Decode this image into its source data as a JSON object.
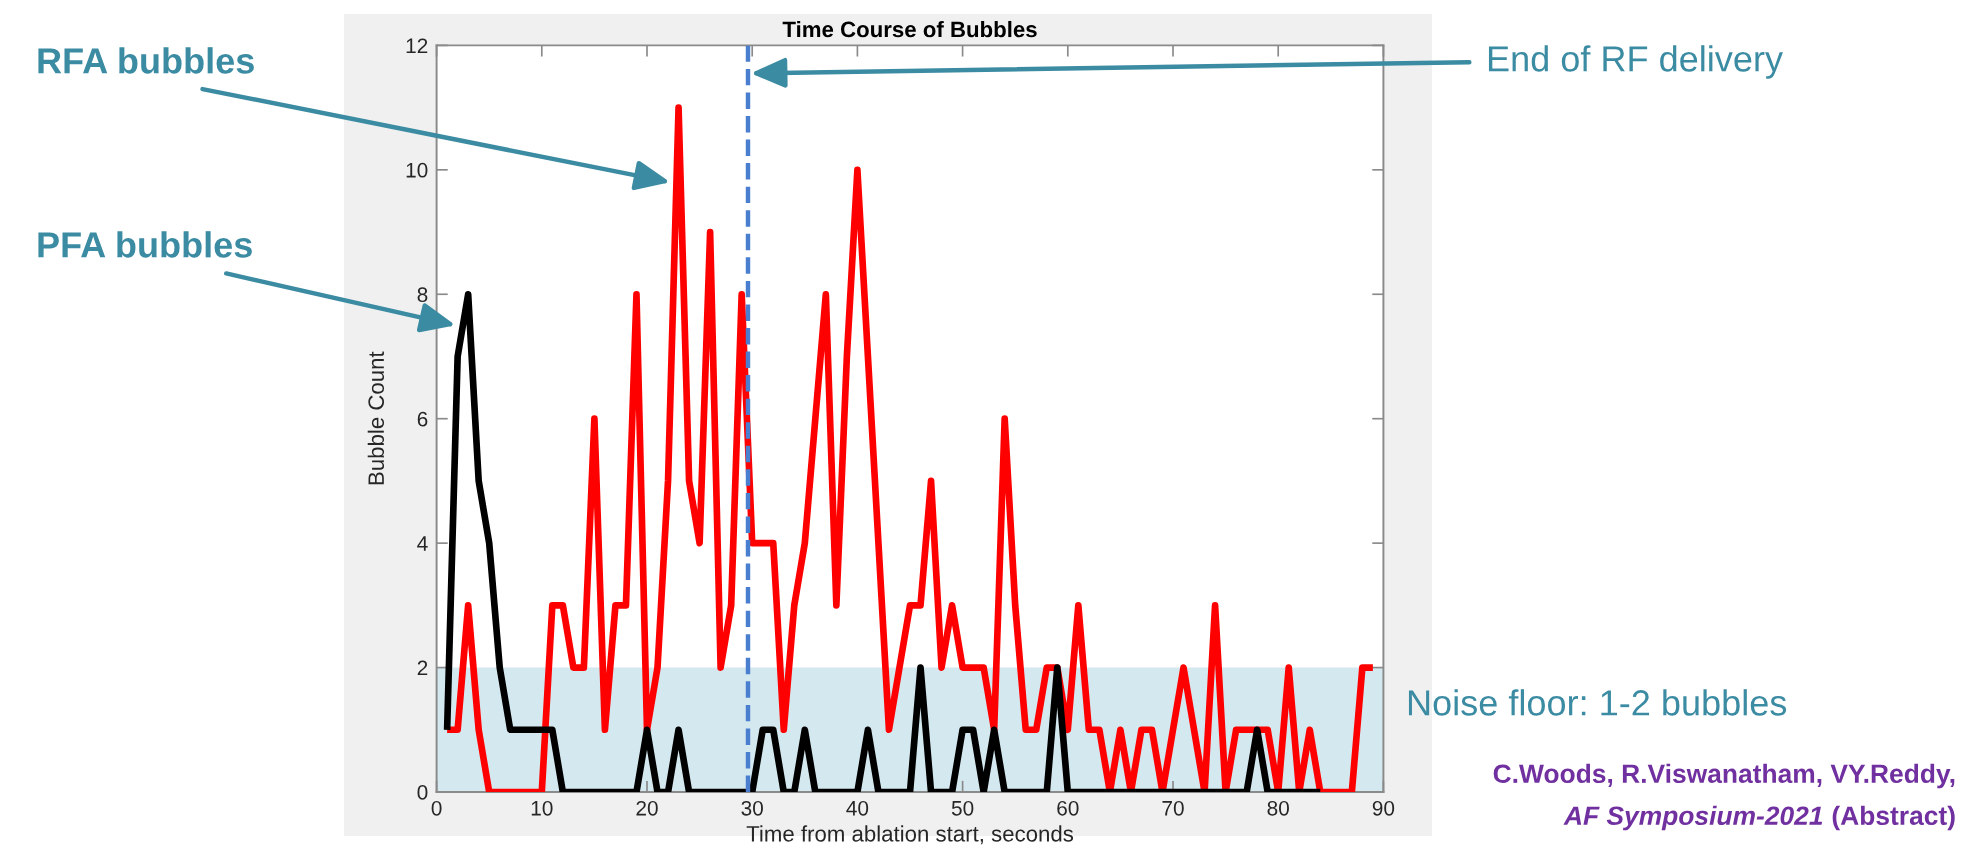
{
  "chart_data": {
    "type": "line",
    "title": "Time Course of Bubbles",
    "xlabel": "Time from ablation start, seconds",
    "ylabel": "Bubble Count",
    "series": [
      {
        "color": "#ff0000",
        "x": [
          1,
          2,
          3,
          4,
          5,
          6,
          7,
          8,
          9,
          10,
          11,
          12,
          13,
          14,
          15,
          16,
          17,
          18,
          19,
          20,
          21,
          22,
          23,
          24,
          25,
          26,
          27,
          28,
          29,
          30,
          31,
          32,
          33,
          34,
          35,
          36,
          37,
          38,
          39,
          40,
          41,
          42,
          43,
          44,
          45,
          46,
          47,
          48,
          49,
          50,
          51,
          52,
          53,
          54,
          55,
          56,
          57,
          58,
          59,
          60,
          61,
          62,
          63,
          64,
          65,
          66,
          67,
          68,
          69,
          70,
          71,
          72,
          73,
          74,
          75,
          76,
          77,
          78,
          79,
          80,
          81,
          82,
          83,
          84,
          85,
          86,
          87,
          88,
          89
        ],
        "values": [
          1,
          1,
          3,
          1,
          0,
          0,
          0,
          0,
          0,
          0,
          3,
          3,
          2,
          2,
          6,
          1,
          3,
          3,
          8,
          1,
          2,
          5,
          11,
          5,
          4,
          9,
          2,
          3,
          8,
          4,
          4,
          4,
          1,
          3,
          4,
          6,
          8,
          3,
          7,
          10,
          7,
          4,
          1,
          2,
          3,
          3,
          5,
          2,
          3,
          2,
          2,
          2,
          1,
          6,
          3,
          1,
          1,
          2,
          2,
          1,
          3,
          1,
          1,
          0,
          1,
          0,
          1,
          1,
          0,
          1,
          2,
          1,
          0,
          3,
          0,
          1,
          1,
          1,
          1,
          0,
          2,
          0,
          1,
          0,
          0,
          0,
          0,
          2,
          2
        ]
      },
      {
        "color": "#000000",
        "x": [
          1,
          2,
          3,
          4,
          5,
          6,
          7,
          8,
          9,
          10,
          11,
          12,
          13,
          14,
          15,
          16,
          17,
          18,
          19,
          20,
          21,
          22,
          23,
          24,
          25,
          26,
          27,
          28,
          29,
          30,
          31,
          32,
          33,
          34,
          35,
          36,
          37,
          38,
          39,
          40,
          41,
          42,
          43,
          44,
          45,
          46,
          47,
          48,
          49,
          50,
          51,
          52,
          53,
          54,
          55,
          56,
          57,
          58,
          59,
          60,
          61,
          62,
          63,
          64,
          65,
          66,
          67,
          68,
          69,
          70,
          71,
          72,
          73,
          74,
          75,
          76,
          77,
          78,
          79,
          80,
          81,
          82,
          83,
          84
        ],
        "values": [
          1,
          7,
          8,
          5,
          4,
          2,
          1,
          1,
          1,
          1,
          1,
          0,
          0,
          0,
          0,
          0,
          0,
          0,
          0,
          1,
          0,
          0,
          1,
          0,
          0,
          0,
          0,
          0,
          0,
          0,
          1,
          1,
          0,
          0,
          1,
          0,
          0,
          0,
          0,
          0,
          1,
          0,
          0,
          0,
          0,
          2,
          0,
          0,
          0,
          1,
          1,
          0,
          1,
          0,
          0,
          0,
          0,
          0,
          2,
          0,
          0,
          0,
          0,
          0,
          0,
          0,
          0,
          0,
          0,
          0,
          0,
          0,
          0,
          0,
          0,
          0,
          0,
          1,
          0,
          0,
          0,
          0,
          0,
          0
        ]
      }
    ],
    "xlim": [
      0,
      90
    ],
    "ylim": [
      0,
      12
    ],
    "xticks": [
      0,
      10,
      20,
      30,
      40,
      50,
      60,
      70,
      80,
      90
    ],
    "yticks": [
      0,
      2,
      4,
      6,
      8,
      10,
      12
    ],
    "ref_lines": [
      {
        "axis": "x",
        "value": 29.6,
        "label": "End of RF delivery",
        "color": "#4a7fd0",
        "line_style": "dashed"
      }
    ],
    "bands": [
      {
        "axis": "y",
        "from": 0,
        "to": 2,
        "label": "Noise floor: 1-2 bubbles",
        "color": "#d4e8ef"
      }
    ],
    "annotations": [
      {
        "text": "RFA bubbles",
        "x": 22.2,
        "y": 9.8
      },
      {
        "text": "PFA bubbles",
        "x": 1.8,
        "y": 7.5
      },
      "C.Woods, R.Viswanatham, VY.Reddy,",
      "AF Symposium-2021",
      "(Abstract)"
    ]
  }
}
